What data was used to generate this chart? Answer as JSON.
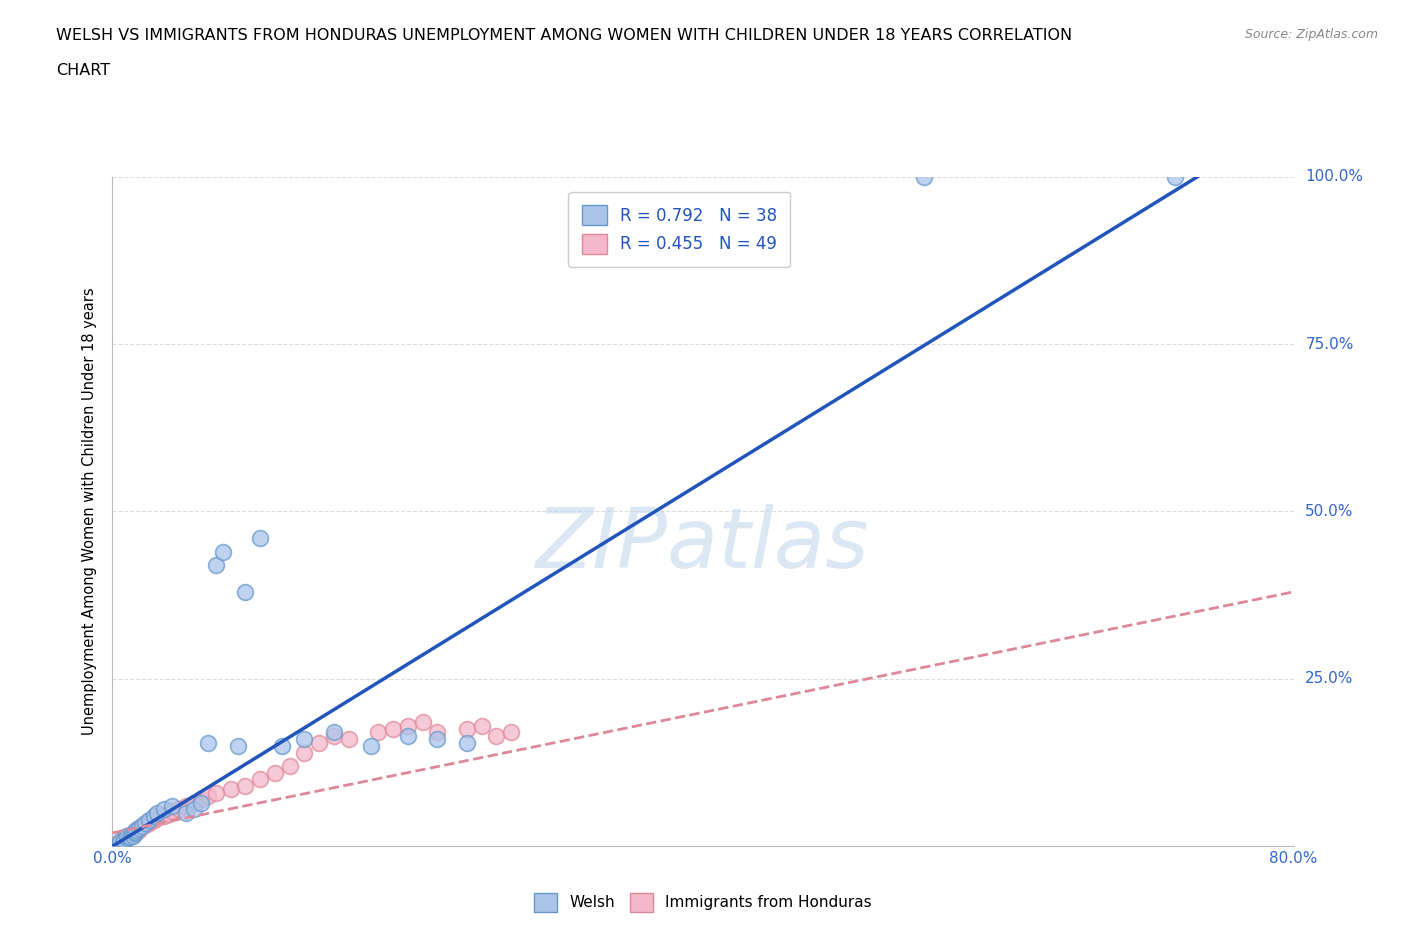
{
  "title_line1": "WELSH VS IMMIGRANTS FROM HONDURAS UNEMPLOYMENT AMONG WOMEN WITH CHILDREN UNDER 18 YEARS CORRELATION",
  "title_line2": "CHART",
  "source": "Source: ZipAtlas.com",
  "ylabel": "Unemployment Among Women with Children Under 18 years",
  "xlim": [
    0,
    0.8
  ],
  "ylim": [
    0,
    1.0
  ],
  "xticks": [
    0.0,
    0.1,
    0.2,
    0.3,
    0.4,
    0.5,
    0.6,
    0.7,
    0.8
  ],
  "xticklabels": [
    "0.0%",
    "",
    "",
    "",
    "",
    "",
    "",
    "",
    "80.0%"
  ],
  "yticks": [
    0.0,
    0.25,
    0.5,
    0.75,
    1.0
  ],
  "yticklabels": [
    "0.0%",
    "25.0%",
    "50.0%",
    "75.0%",
    "100.0%"
  ],
  "welsh_color": "#aac4ea",
  "welsh_edge": "#6699cc",
  "honduras_color": "#f4b8cc",
  "honduras_edge": "#e08898",
  "trendline_welsh_color": "#2255bb",
  "trendline_honduras_color": "#dd8899",
  "welsh_R": 0.792,
  "welsh_N": 38,
  "honduras_R": 0.455,
  "honduras_N": 49,
  "watermark": "ZIPatlas",
  "background_color": "#ffffff",
  "grid_color": "#dddddd",
  "axis_label_color": "#3366cc",
  "welsh_x": [
    0.005,
    0.005,
    0.007,
    0.008,
    0.01,
    0.01,
    0.012,
    0.013,
    0.014,
    0.015,
    0.015,
    0.016,
    0.018,
    0.02,
    0.022,
    0.025,
    0.028,
    0.03,
    0.035,
    0.04,
    0.05,
    0.055,
    0.06,
    0.065,
    0.07,
    0.075,
    0.085,
    0.09,
    0.1,
    0.115,
    0.13,
    0.15,
    0.175,
    0.2,
    0.22,
    0.24,
    0.55,
    0.72
  ],
  "welsh_y": [
    0.005,
    0.008,
    0.006,
    0.01,
    0.012,
    0.015,
    0.014,
    0.018,
    0.016,
    0.02,
    0.022,
    0.025,
    0.028,
    0.03,
    0.035,
    0.04,
    0.045,
    0.05,
    0.055,
    0.06,
    0.05,
    0.055,
    0.065,
    0.155,
    0.42,
    0.44,
    0.15,
    0.38,
    0.46,
    0.15,
    0.16,
    0.17,
    0.15,
    0.165,
    0.16,
    0.155,
    1.0,
    1.0
  ],
  "honduras_x": [
    0.003,
    0.005,
    0.005,
    0.007,
    0.008,
    0.008,
    0.01,
    0.01,
    0.012,
    0.013,
    0.014,
    0.015,
    0.015,
    0.016,
    0.018,
    0.018,
    0.02,
    0.022,
    0.025,
    0.025,
    0.028,
    0.03,
    0.035,
    0.038,
    0.04,
    0.045,
    0.05,
    0.055,
    0.06,
    0.065,
    0.07,
    0.08,
    0.09,
    0.1,
    0.11,
    0.12,
    0.13,
    0.14,
    0.15,
    0.16,
    0.18,
    0.19,
    0.2,
    0.21,
    0.22,
    0.24,
    0.25,
    0.26,
    0.27
  ],
  "honduras_y": [
    0.003,
    0.005,
    0.007,
    0.008,
    0.01,
    0.012,
    0.013,
    0.015,
    0.016,
    0.018,
    0.018,
    0.02,
    0.022,
    0.025,
    0.025,
    0.028,
    0.03,
    0.032,
    0.035,
    0.038,
    0.04,
    0.042,
    0.045,
    0.048,
    0.052,
    0.055,
    0.06,
    0.065,
    0.07,
    0.075,
    0.08,
    0.085,
    0.09,
    0.1,
    0.11,
    0.12,
    0.14,
    0.155,
    0.165,
    0.16,
    0.17,
    0.175,
    0.18,
    0.185,
    0.17,
    0.175,
    0.18,
    0.165,
    0.17
  ],
  "welsh_trend_x": [
    0.0,
    0.735
  ],
  "welsh_trend_y": [
    0.0,
    1.0
  ],
  "honduras_trend_x": [
    0.0,
    0.8
  ],
  "honduras_trend_y": [
    0.02,
    0.38
  ]
}
